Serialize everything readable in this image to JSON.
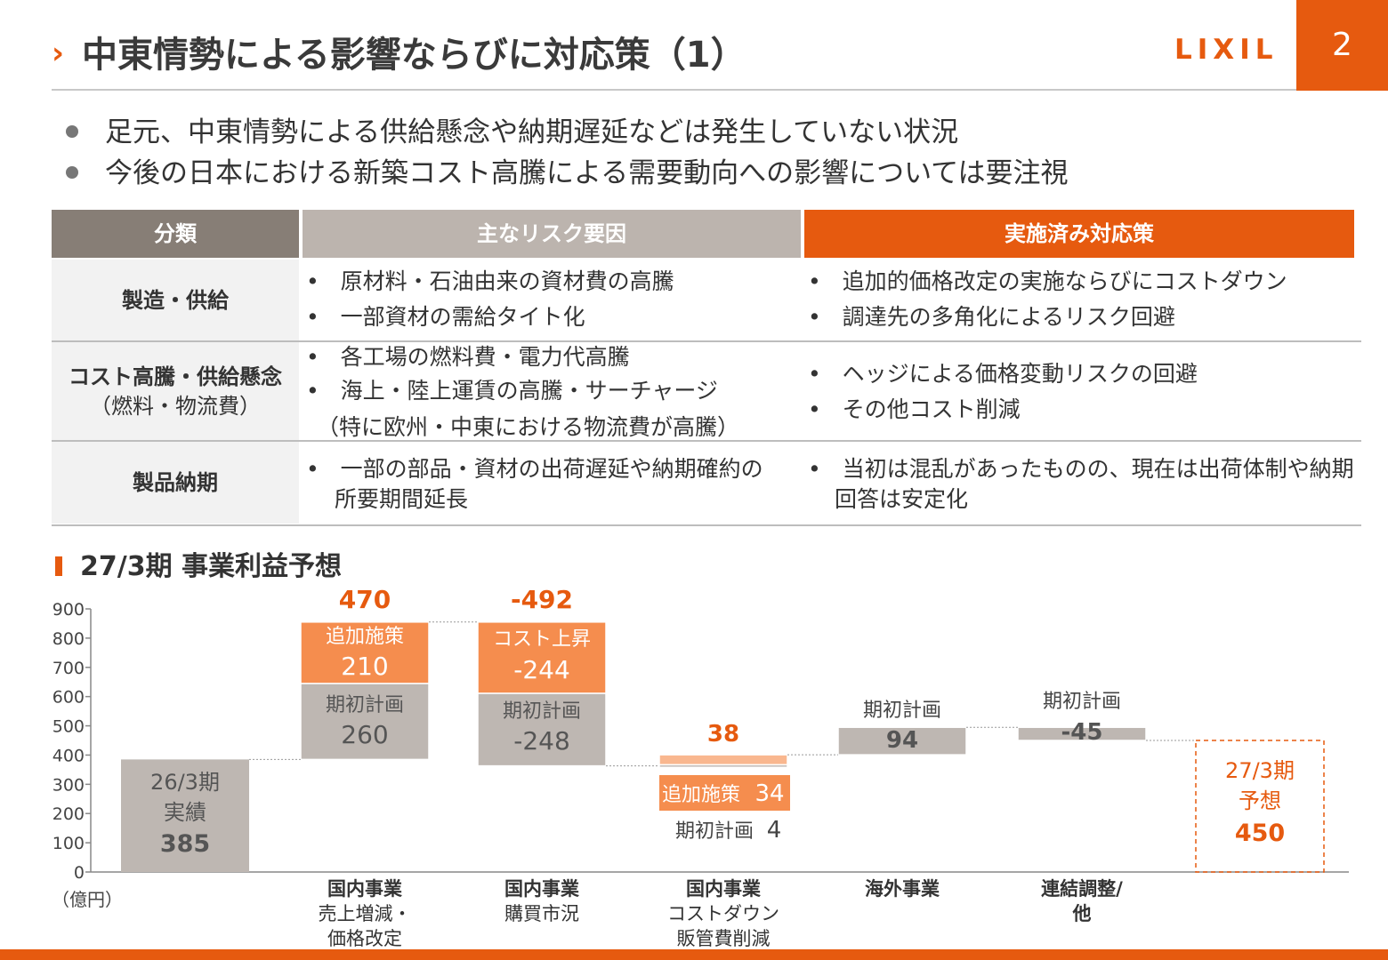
{
  "header": {
    "title": "中東情勢による影響ならびに対応策（1）",
    "logo": "LIXIL",
    "page_number": "2"
  },
  "bullets": [
    "足元、中東情勢による供給懸念や納期遅延などは発生していない状況",
    "今後の日本における新築コスト高騰による需要動向への影響については要注視"
  ],
  "table": {
    "headers": [
      "分類",
      "主なリスク要因",
      "実施済み対応策"
    ],
    "rows": [
      {
        "category": "製造・供給",
        "category_sub": "",
        "risks": [
          "原材料・石油由来の資材費の高騰",
          "一部資材の需給タイト化"
        ],
        "risks_note": "",
        "measures": [
          "追加的価格改定の実施ならびにコストダウン",
          "調達先の多角化によるリスク回避"
        ]
      },
      {
        "category": "コスト高騰・供給懸念",
        "category_sub": "（燃料・物流費）",
        "risks": [
          "各工場の燃料費・電力代高騰",
          "海上・陸上運賃の高騰・サーチャージ"
        ],
        "risks_note": "（特に欧州・中東における物流費が高騰）",
        "measures": [
          "ヘッジによる価格変動リスクの回避",
          "その他コスト削減"
        ]
      },
      {
        "category": "製品納期",
        "category_sub": "",
        "risks": [
          "一部の部品・資材の出荷遅延や納期確約の",
          "所要期間延長"
        ],
        "risks_note": "",
        "measures": [
          "当初は混乱があったものの、現在は出荷体制や納期",
          "回答は安定化"
        ]
      }
    ]
  },
  "section_title": "27/3期 事業利益予想",
  "colors": {
    "accent": "#e65a0f",
    "orange_light": "#f58d4e",
    "orange_pale": "#f9b78f",
    "gray": "#beb7b2",
    "header_dark": "#877e76",
    "header_mid": "#bcb4ae"
  },
  "chart_data": {
    "type": "waterfall",
    "unit": "（億円）",
    "yticks": [
      "0",
      "100",
      "200",
      "300",
      "400",
      "500",
      "600",
      "700",
      "800",
      "900"
    ],
    "ylim": [
      0,
      900
    ],
    "categories": [
      {
        "lines": [],
        "bold_lines": []
      },
      {
        "bold_lines": [
          "国内事業"
        ],
        "lines": [
          "売上増減・",
          "価格改定"
        ]
      },
      {
        "bold_lines": [
          "国内事業"
        ],
        "lines": [
          "購買市況"
        ]
      },
      {
        "bold_lines": [
          "国内事業"
        ],
        "lines": [
          "コストダウン",
          "販管費削減"
        ]
      },
      {
        "bold_lines": [
          "海外事業"
        ],
        "lines": []
      },
      {
        "bold_lines": [
          "連結調整/",
          "他"
        ],
        "lines": []
      },
      {
        "lines": [],
        "bold_lines": []
      }
    ],
    "bars": [
      {
        "kind": "start",
        "start": 0,
        "end": 385,
        "label_lines": [
          "26/3期",
          "実績"
        ],
        "value_label": "385"
      },
      {
        "kind": "step",
        "total_label": "470",
        "segments": [
          {
            "start": 385,
            "end": 645,
            "name": "期初計画",
            "value": "260"
          },
          {
            "start": 645,
            "end": 855,
            "name": "追加施策",
            "value": "210"
          }
        ]
      },
      {
        "kind": "step",
        "total_label": "-492",
        "segments": [
          {
            "start": 855,
            "end": 611,
            "name": "コスト上昇",
            "value": "-244"
          },
          {
            "start": 611,
            "end": 363,
            "name": "期初計画",
            "value": "-248"
          }
        ]
      },
      {
        "kind": "step",
        "total_label": "38",
        "segments": [
          {
            "start": 363,
            "end": 367,
            "name": "期初計画",
            "value": "4"
          },
          {
            "start": 367,
            "end": 401,
            "name": "追加施策",
            "value": "34"
          }
        ]
      },
      {
        "kind": "step",
        "total_label": "94",
        "segments": [
          {
            "start": 401,
            "end": 495,
            "name": "期初計画",
            "value": "94"
          }
        ]
      },
      {
        "kind": "step",
        "total_label": "-45",
        "segments": [
          {
            "start": 495,
            "end": 450,
            "name": "期初計画",
            "value": "-45"
          }
        ]
      },
      {
        "kind": "end",
        "start": 0,
        "end": 450,
        "label_lines": [
          "27/3期",
          "予想"
        ],
        "value_label": "450"
      }
    ]
  }
}
